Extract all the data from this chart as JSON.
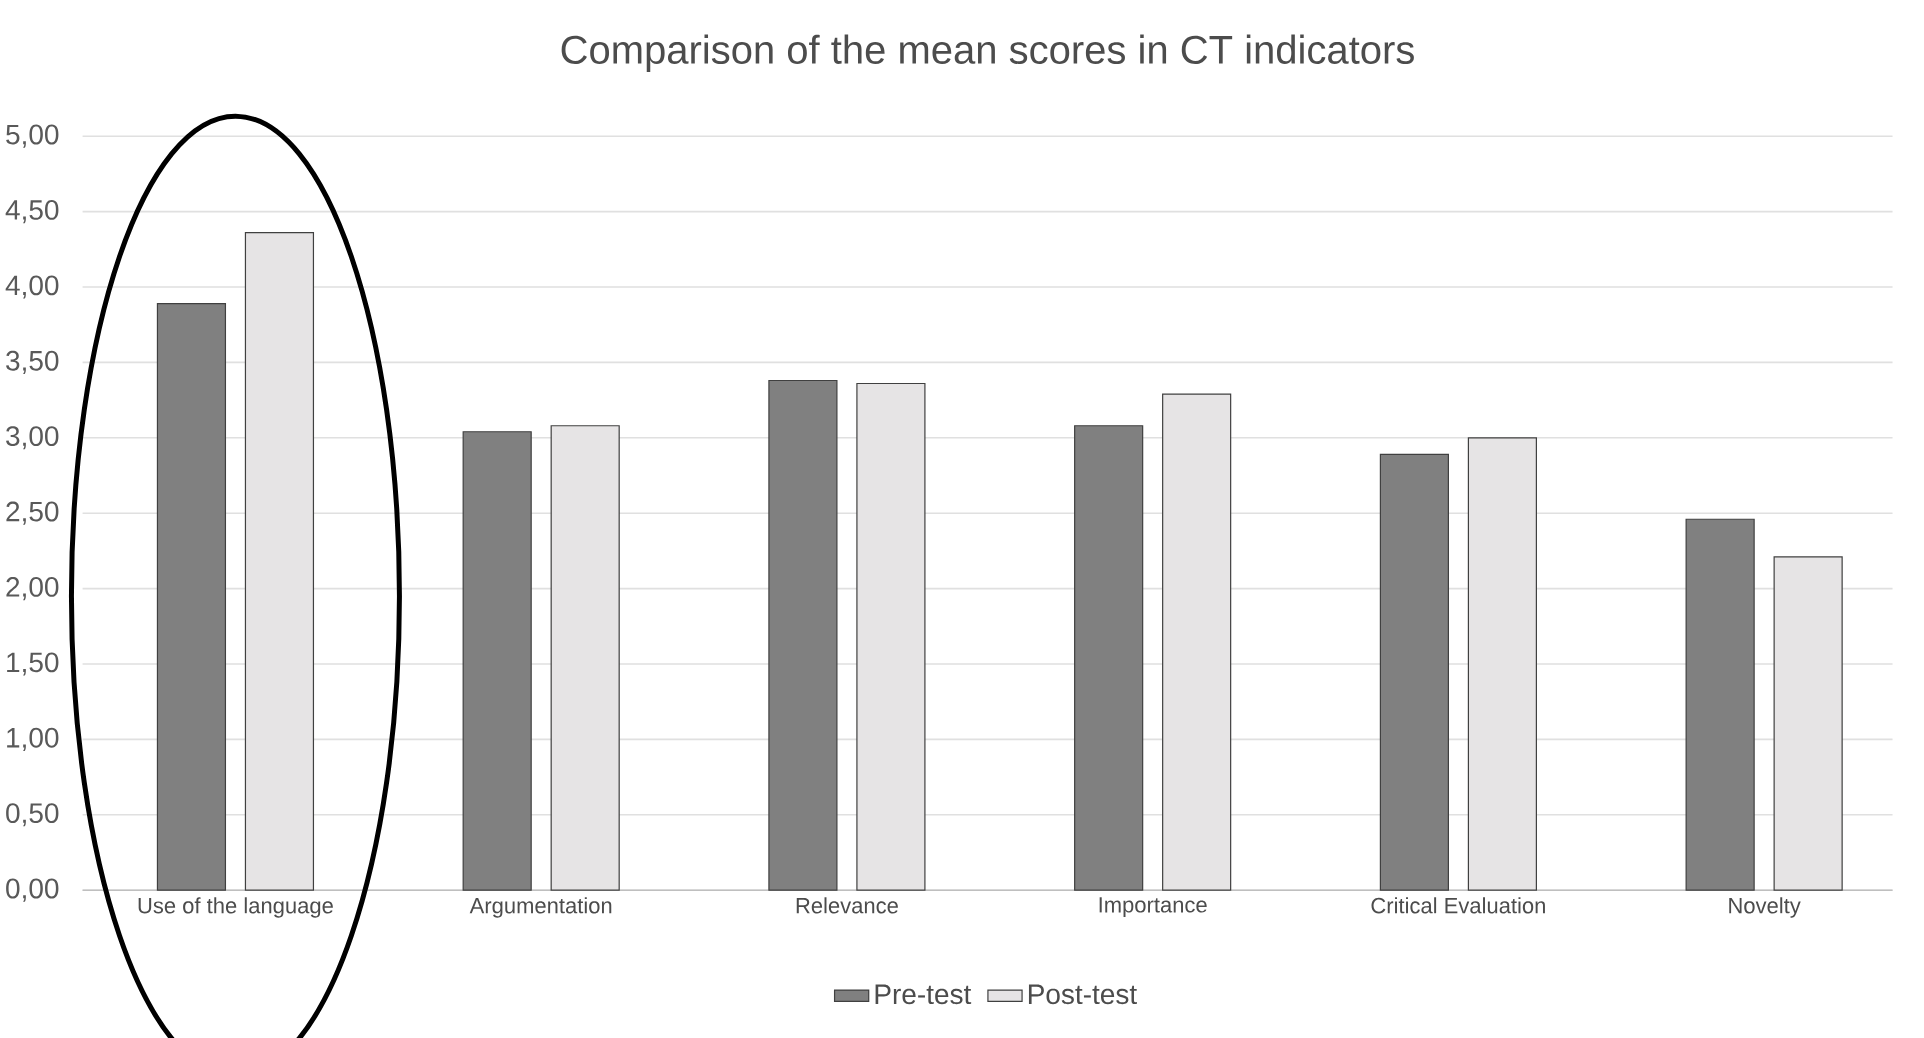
{
  "chart_data": {
    "type": "bar",
    "title": "Comparison of the mean scores in CT indicators",
    "categories": [
      "Use of the language",
      "Argumentation",
      "Relevance",
      "Importance",
      "Critical Evaluation",
      "Novelty"
    ],
    "series": [
      {
        "name": "Pre-test",
        "color": "#808080",
        "values": [
          3.89,
          3.04,
          3.38,
          3.08,
          2.89,
          2.46
        ]
      },
      {
        "name": "Post-test",
        "color": "#e6e4e5",
        "values": [
          4.36,
          3.08,
          3.36,
          3.29,
          3.0,
          2.21
        ]
      }
    ],
    "ylim": [
      0,
      5
    ],
    "yticks": [
      {
        "value": 0,
        "label": "0,00"
      },
      {
        "value": 0.5,
        "label": "0,50"
      },
      {
        "value": 1,
        "label": "1,00"
      },
      {
        "value": 1.5,
        "label": "1,50"
      },
      {
        "value": 2,
        "label": "2,00"
      },
      {
        "value": 2.5,
        "label": "2,50"
      },
      {
        "value": 3,
        "label": "3,00"
      },
      {
        "value": 3.5,
        "label": "3,50"
      },
      {
        "value": 4,
        "label": "4,00"
      },
      {
        "value": 4.5,
        "label": "4,50"
      },
      {
        "value": 5,
        "label": "5,00"
      }
    ],
    "grid": "y",
    "legend": "bottom"
  }
}
